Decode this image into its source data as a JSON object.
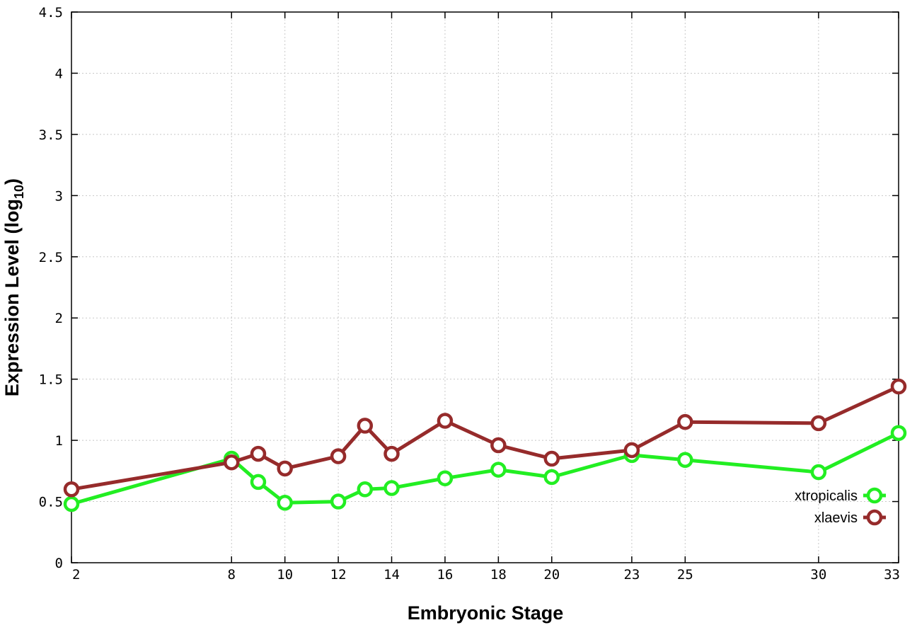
{
  "chart_data": {
    "type": "line",
    "title": "",
    "xlabel": "Embryonic Stage",
    "ylabel": {
      "main": "Expression Level (log",
      "sub": "10",
      "close": ")"
    },
    "x_ticks": [
      2,
      8,
      10,
      12,
      14,
      16,
      18,
      20,
      23,
      25,
      30,
      33
    ],
    "y_ticks": [
      "0",
      "0.5",
      "1",
      "1.5",
      "2",
      "2.5",
      "3",
      "3.5",
      "4",
      "4.5"
    ],
    "xlim": [
      2,
      33
    ],
    "ylim": [
      0,
      4.5
    ],
    "grid": true,
    "legend_position": "bottom-right",
    "x": [
      2,
      8,
      9,
      10,
      12,
      13,
      14,
      16,
      18,
      20,
      23,
      25,
      30,
      33
    ],
    "series": [
      {
        "name": "xtropicalis",
        "color": "#22ee22",
        "values": [
          0.48,
          0.85,
          0.66,
          0.49,
          0.5,
          0.6,
          0.61,
          0.69,
          0.76,
          0.7,
          0.88,
          0.84,
          0.74,
          1.06
        ]
      },
      {
        "name": "xlaevis",
        "color": "#962b2b",
        "values": [
          0.6,
          0.82,
          0.89,
          0.77,
          0.87,
          1.12,
          0.89,
          1.16,
          0.96,
          0.85,
          0.92,
          1.15,
          1.14,
          1.44
        ]
      }
    ]
  }
}
